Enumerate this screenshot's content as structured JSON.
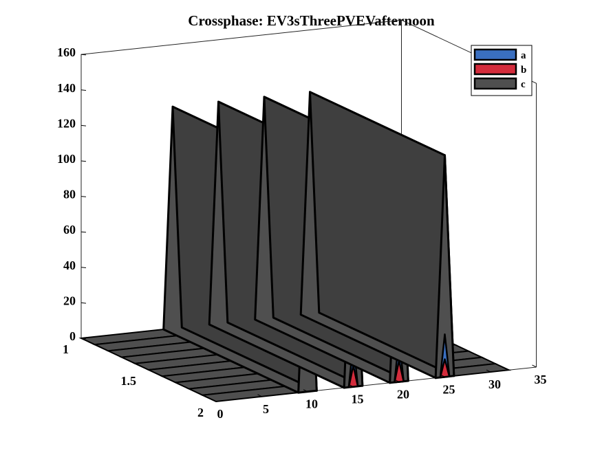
{
  "chart_data": {
    "type": "area",
    "title": "Crossphase: EV3sThreePVEVafternoon",
    "xlabel": "",
    "ylabel": "",
    "zlabel": "",
    "x_ticks": [
      "0",
      "5",
      "10",
      "15",
      "20",
      "25",
      "30",
      "35"
    ],
    "y_ticks": [
      "1",
      "1.5",
      "2"
    ],
    "z_ticks": [
      "0",
      "20",
      "40",
      "60",
      "80",
      "100",
      "120",
      "140",
      "160"
    ],
    "xlim": [
      0,
      35
    ],
    "ylim": [
      1,
      2
    ],
    "zlim": [
      0,
      160
    ],
    "view": "3d",
    "legend_placement": "top-right",
    "series": [
      {
        "name": "a",
        "color": "#3a6fc0",
        "x": [
          14,
          15,
          16,
          19,
          20,
          21,
          24,
          25,
          26
        ],
        "values": [
          0,
          25,
          0,
          0,
          25,
          0,
          0,
          24,
          0
        ]
      },
      {
        "name": "b",
        "color": "#d42c3c",
        "x": [
          14,
          15,
          16,
          19,
          20,
          21,
          24,
          25,
          26
        ],
        "values": [
          0,
          12,
          0,
          0,
          12,
          0,
          0,
          10,
          0
        ]
      },
      {
        "name": "c",
        "color": "#4f4f4f",
        "x": [
          9,
          10,
          11,
          14,
          15,
          16,
          19,
          20,
          21,
          24,
          25,
          26
        ],
        "values": [
          0,
          125,
          0,
          0,
          125,
          0,
          0,
          125,
          0,
          0,
          125,
          0
        ]
      }
    ]
  }
}
